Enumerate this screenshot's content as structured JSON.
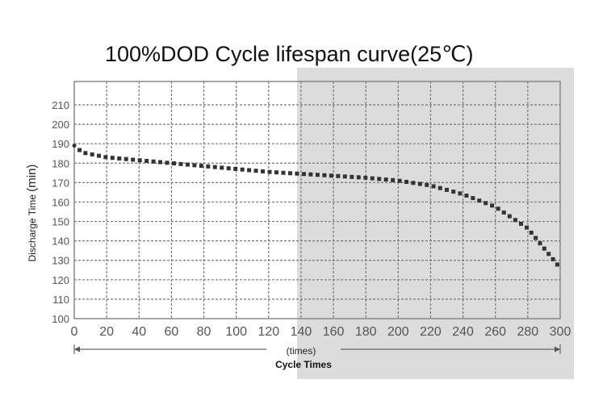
{
  "chart_data": {
    "type": "line",
    "title": "100%DOD Cycle lifespan curve(25℃)",
    "xlabel": "Cycle Times",
    "xunit": "(times)",
    "ylabel": "Discharge Time",
    "yunit": "(min)",
    "xlim": [
      0,
      300
    ],
    "ylim": [
      100,
      210
    ],
    "xticks": [
      0,
      20,
      40,
      60,
      80,
      100,
      120,
      140,
      160,
      180,
      200,
      220,
      240,
      260,
      280,
      300
    ],
    "yticks": [
      100,
      110,
      120,
      130,
      140,
      150,
      160,
      170,
      180,
      190,
      200,
      210
    ],
    "grid": true,
    "line_style": "dotted",
    "series": [
      {
        "name": "Discharge Time",
        "color": "#333333",
        "x": [
          0,
          5,
          20,
          40,
          60,
          80,
          100,
          120,
          140,
          160,
          180,
          200,
          220,
          240,
          260,
          280,
          300
        ],
        "y": [
          189,
          185.5,
          183,
          181.5,
          180,
          178.5,
          177,
          175.5,
          174.5,
          173.5,
          172.5,
          171,
          168.5,
          164,
          157.5,
          146.5,
          126
        ]
      }
    ]
  }
}
